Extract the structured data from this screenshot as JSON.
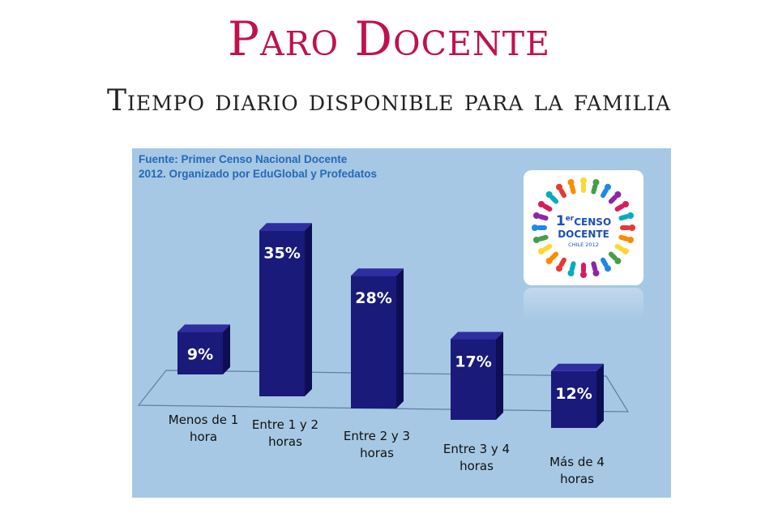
{
  "page": {
    "title": "Paro Docente",
    "subtitle": "Tiempo diario disponible para la familia"
  },
  "source": {
    "line1": "Fuente: Primer Censo Nacional  Docente",
    "line2": "2012. Organizado por EduGlobal y Profedatos"
  },
  "logo": {
    "line1_num": "1",
    "line1_sup": "er",
    "line1_word": "CENSO",
    "line2": "DOCENTE",
    "line3": "CHILE 2012"
  },
  "colors": {
    "title": "#c0114e",
    "bar_front": "#1a1a7a",
    "bar_side": "#0e0e55",
    "bar_top": "#2e2ea0",
    "panel": "#a6c8e4"
  },
  "chart_data": {
    "type": "bar",
    "categories": [
      [
        "Menos de 1",
        "hora"
      ],
      [
        "Entre 1 y 2",
        "horas"
      ],
      [
        "Entre 2 y 3",
        "horas"
      ],
      [
        "Entre 3 y 4",
        "horas"
      ],
      [
        "Más de 4",
        "horas"
      ]
    ],
    "values": [
      9,
      35,
      28,
      17,
      12
    ],
    "data_labels": [
      "9%",
      "35%",
      "28%",
      "17%",
      "12%"
    ],
    "unit": "%",
    "grid": false,
    "legend": "none"
  }
}
